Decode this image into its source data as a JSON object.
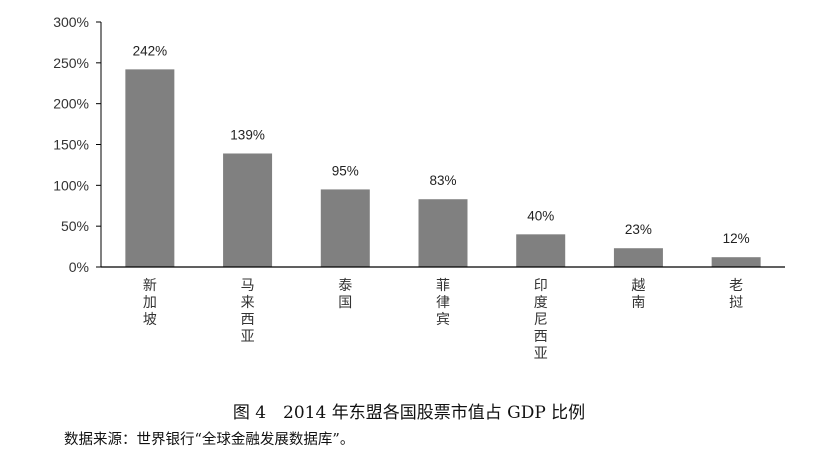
{
  "chart_data": {
    "type": "bar",
    "categories": [
      "新加坡",
      "马来西亚",
      "泰国",
      "菲律宾",
      "印度尼西亚",
      "越南",
      "老挝"
    ],
    "values": [
      242,
      139,
      95,
      83,
      40,
      23,
      12
    ],
    "data_labels": [
      "242%",
      "139%",
      "95%",
      "83%",
      "40%",
      "23%",
      "12%"
    ],
    "title": "",
    "xlabel": "",
    "ylabel": "",
    "ylim": [
      0,
      300
    ],
    "yticks": [
      0,
      50,
      100,
      150,
      200,
      250,
      300
    ],
    "ytick_labels": [
      "0%",
      "50%",
      "100%",
      "150%",
      "200%",
      "250%",
      "300%"
    ],
    "grid": false,
    "bar_color": "#808080"
  },
  "caption": "图 4　2014 年东盟各国股票市值占 GDP 比例",
  "source": "数据来源：世界银行“全球金融发展数据库”。"
}
